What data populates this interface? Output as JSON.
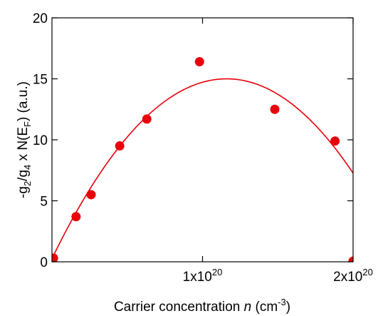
{
  "chart_data": {
    "type": "scatter",
    "title": "",
    "xlabel": {
      "pre": "Carrier concentration ",
      "italic": "n",
      "post_open": " (cm",
      "sup": "-3",
      "post_close": ")"
    },
    "ylabel": {
      "a": "-g",
      "a_sub": "2",
      "b": "/g",
      "b_sub": "4",
      "c": " x N(E",
      "c_sub": "F",
      "d": ") (a.u.)"
    },
    "xlim": [
      0,
      2e+20
    ],
    "ylim": [
      0,
      20
    ],
    "x_ticks": [
      {
        "value": 1e+20,
        "base": "1x10",
        "exp": "20"
      },
      {
        "value": 2e+20,
        "base": "2x10",
        "exp": "20"
      }
    ],
    "y_ticks": [
      {
        "value": 0,
        "label": "0"
      },
      {
        "value": 5,
        "label": "5"
      },
      {
        "value": 10,
        "label": "10"
      },
      {
        "value": 15,
        "label": "15"
      },
      {
        "value": 20,
        "label": "20"
      }
    ],
    "grid": false,
    "series": [
      {
        "color": "#e8000b",
        "marker": "circle",
        "x": [
          1e+18,
          1.6e+19,
          2.6e+19,
          4.5e+19,
          6.3e+19,
          9.8e+19,
          1.48e+20,
          1.88e+20,
          2e+20
        ],
        "y": [
          0.3,
          3.7,
          5.5,
          9.5,
          11.7,
          16.4,
          12.5,
          9.9,
          0.05
        ]
      }
    ],
    "fit": {
      "type": "line",
      "color": "#e8000b",
      "x_range": [
        0,
        2e+20
      ],
      "vertex_x": 1.16e+20,
      "vertex_y": 15.0,
      "root_x": 2.33e+20
    }
  }
}
